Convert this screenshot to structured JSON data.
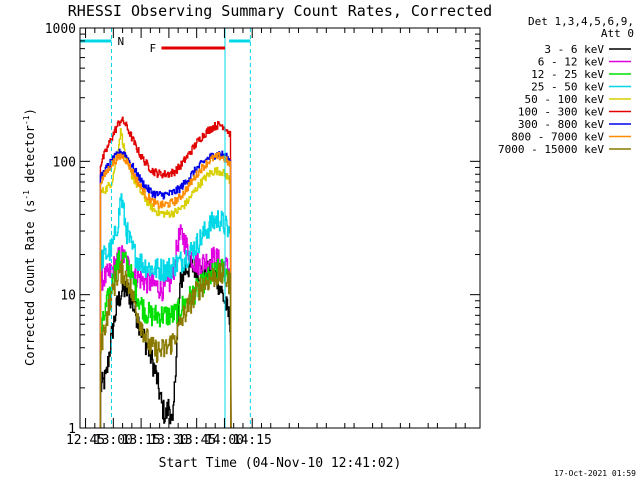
{
  "chart_data": {
    "type": "line",
    "title": "RHESSI Observing Summary Count Rates, Corrected",
    "xlabel": "Start Time (04-Nov-10 12:41:02)",
    "ylabel_main": "Corrected Count Rate (s",
    "ylabel_sup1": "-1",
    "ylabel_mid": " detector",
    "ylabel_sup2": "-1",
    "ylabel_end": ")",
    "yscale": "log",
    "ylim": [
      1,
      1000
    ],
    "xlim_minutes": [
      762.0,
      978.0
    ],
    "yticks": [
      {
        "value": 1,
        "label": "1"
      },
      {
        "value": 10,
        "label": "10"
      },
      {
        "value": 100,
        "label": "100"
      },
      {
        "value": 1000,
        "label": "1000"
      }
    ],
    "xticks": [
      {
        "minute": 765,
        "label": "12:45"
      },
      {
        "minute": 780,
        "label": "13:00"
      },
      {
        "minute": 795,
        "label": "13:15"
      },
      {
        "minute": 810,
        "label": "13:30"
      },
      {
        "minute": 825,
        "label": "13:45"
      },
      {
        "minute": 840,
        "label": "14:00"
      },
      {
        "minute": 855,
        "label": "14:15"
      }
    ],
    "legend_header": [
      "Det 1,3,4,5,6,9,",
      "Att 0"
    ],
    "timestamp": "17-Oct-2021 01:59",
    "annotations": {
      "night_label": "N",
      "flare_label": "F",
      "night_intervals": [
        [
          762.0,
          779.0
        ],
        [
          842.5,
          854.0
        ]
      ],
      "night_boundaries": [
        779.0,
        854.0
      ],
      "day_start": 840.3,
      "flare_interval": [
        806.0,
        840.3
      ],
      "flare_color": "#e00000"
    },
    "series": [
      {
        "name": "3 - 6 keV",
        "color": "#000000",
        "x": [
          773,
          776,
          779,
          782,
          785,
          788,
          791,
          794,
          797,
          800,
          803,
          806,
          808,
          810,
          812,
          814,
          816,
          818,
          820,
          823,
          826,
          829,
          832,
          835,
          838,
          841,
          843.5
        ],
        "y": [
          2.0,
          2.4,
          5.0,
          8.5,
          11.0,
          10.5,
          8.0,
          6.0,
          4.5,
          3.5,
          2.5,
          1.5,
          1.2,
          1.5,
          1.0,
          4.0,
          12.0,
          15.0,
          16.0,
          16.0,
          15.0,
          14.0,
          15.0,
          14.0,
          11.0,
          8.0,
          6.0
        ]
      },
      {
        "name": "6 - 12 keV",
        "color": "#e000e0",
        "x": [
          773,
          776,
          779,
          782,
          784,
          786,
          789,
          792,
          795,
          798,
          801,
          804,
          807,
          810,
          812,
          815,
          817,
          820,
          823,
          826,
          829,
          832,
          835,
          838,
          841,
          843.5
        ],
        "y": [
          13.0,
          13.5,
          15.0,
          18.0,
          20.0,
          18.5,
          15.5,
          14.0,
          13.0,
          12.5,
          12.0,
          11.5,
          11.0,
          12.0,
          14.0,
          26.0,
          28.0,
          22.0,
          18.0,
          17.0,
          17.5,
          18.5,
          19.0,
          17.0,
          16.0,
          15.0
        ]
      },
      {
        "name": "12 - 25 keV",
        "color": "#00e000",
        "x": [
          773,
          776,
          779,
          782,
          785,
          788,
          791,
          794,
          797,
          800,
          803,
          806,
          809,
          812,
          815,
          818,
          821,
          824,
          827,
          830,
          833,
          836,
          839,
          842,
          843.5
        ],
        "y": [
          5.0,
          8.0,
          12.0,
          17.0,
          19.0,
          16.0,
          12.0,
          9.0,
          7.5,
          7.0,
          7.0,
          7.0,
          7.0,
          7.0,
          7.5,
          8.5,
          9.5,
          10.5,
          11.5,
          12.5,
          14.0,
          15.0,
          15.5,
          14.5,
          14.0
        ]
      },
      {
        "name": "25 - 50 keV",
        "color": "#00d8e8",
        "x": [
          773,
          776,
          779,
          781,
          783,
          784,
          785,
          787,
          790,
          793,
          796,
          799,
          802,
          805,
          808,
          811,
          814,
          817,
          820,
          823,
          826,
          829,
          832,
          835,
          837,
          840,
          843.5
        ],
        "y": [
          18.0,
          20.0,
          22.0,
          28.0,
          40.0,
          56.0,
          45.0,
          30.0,
          22.0,
          18.5,
          17.0,
          16.0,
          15.5,
          15.5,
          15.5,
          16.0,
          17.0,
          18.0,
          20.0,
          22.0,
          25.0,
          29.0,
          33.0,
          36.0,
          37.0,
          33.0,
          28.0
        ]
      },
      {
        "name": "50 - 100 keV",
        "color": "#d8d000",
        "x": [
          773,
          776,
          779,
          781,
          783,
          784,
          785,
          787,
          790,
          793,
          796,
          799,
          802,
          805,
          808,
          811,
          814,
          817,
          820,
          823,
          826,
          829,
          832,
          835,
          838,
          841,
          843.5
        ],
        "y": [
          58.0,
          62.0,
          70.0,
          95.0,
          140.0,
          170.0,
          140.0,
          100.0,
          78.0,
          65.0,
          55.0,
          48.0,
          43.0,
          41.0,
          40.5,
          40.5,
          42.0,
          45.0,
          50.0,
          58.0,
          66.0,
          74.0,
          81.0,
          85.0,
          84.0,
          78.0,
          70.0
        ]
      },
      {
        "name": "100 - 300 keV",
        "color": "#e00000",
        "x": [
          773,
          776,
          779,
          782,
          784,
          786,
          789,
          792,
          795,
          798,
          801,
          804,
          807,
          810,
          813,
          816,
          819,
          822,
          825,
          828,
          831,
          834,
          837,
          839,
          841,
          843.5
        ],
        "y": [
          95.0,
          120.0,
          150.0,
          185.0,
          205.0,
          195.0,
          160.0,
          130.0,
          108.0,
          95.0,
          85.0,
          81.0,
          80.0,
          80.5,
          84.0,
          92.0,
          105.0,
          120.0,
          138.0,
          155.0,
          170.0,
          182.0,
          188.0,
          185.0,
          175.0,
          155.0
        ]
      },
      {
        "name": "300 - 800 keV",
        "color": "#0000e8",
        "x": [
          773,
          776,
          779,
          782,
          784,
          786,
          789,
          792,
          795,
          798,
          801,
          804,
          807,
          810,
          813,
          816,
          819,
          822,
          825,
          828,
          831,
          834,
          837,
          839,
          841,
          843.5
        ],
        "y": [
          75.0,
          88.0,
          100.0,
          112.0,
          118.0,
          114.0,
          98.0,
          83.0,
          71.0,
          63.0,
          58.0,
          56.0,
          56.0,
          57.0,
          59.0,
          63.0,
          70.0,
          79.0,
          88.0,
          97.0,
          105.0,
          111.0,
          114.0,
          112.0,
          107.0,
          98.0
        ]
      },
      {
        "name": "800 - 7000 keV",
        "color": "#ff8c00",
        "x": [
          773,
          776,
          779,
          782,
          784,
          786,
          789,
          792,
          795,
          798,
          801,
          804,
          807,
          810,
          813,
          816,
          819,
          822,
          825,
          828,
          831,
          834,
          837,
          839,
          841,
          843.5
        ],
        "y": [
          70.0,
          82.0,
          95.0,
          105.0,
          110.0,
          106.0,
          90.0,
          75.0,
          63.0,
          55.0,
          50.0,
          47.0,
          47.0,
          48.0,
          50.0,
          54.0,
          61.0,
          70.0,
          80.0,
          90.0,
          99.0,
          106.0,
          109.0,
          107.0,
          101.0,
          92.0
        ]
      },
      {
        "name": "7000 - 15000 keV",
        "color": "#8a7a00",
        "x": [
          773,
          776,
          779,
          782,
          785,
          788,
          791,
          794,
          797,
          800,
          803,
          806,
          809,
          812,
          815,
          818,
          821,
          824,
          827,
          830,
          833,
          836,
          839,
          842,
          843.5
        ],
        "y": [
          4.0,
          6.5,
          10.0,
          14.0,
          15.0,
          12.5,
          9.0,
          6.5,
          5.0,
          4.0,
          3.8,
          3.8,
          4.0,
          4.5,
          5.5,
          7.0,
          8.5,
          10.0,
          11.5,
          12.5,
          13.5,
          14.0,
          14.0,
          12.5,
          12.0
        ]
      }
    ]
  }
}
